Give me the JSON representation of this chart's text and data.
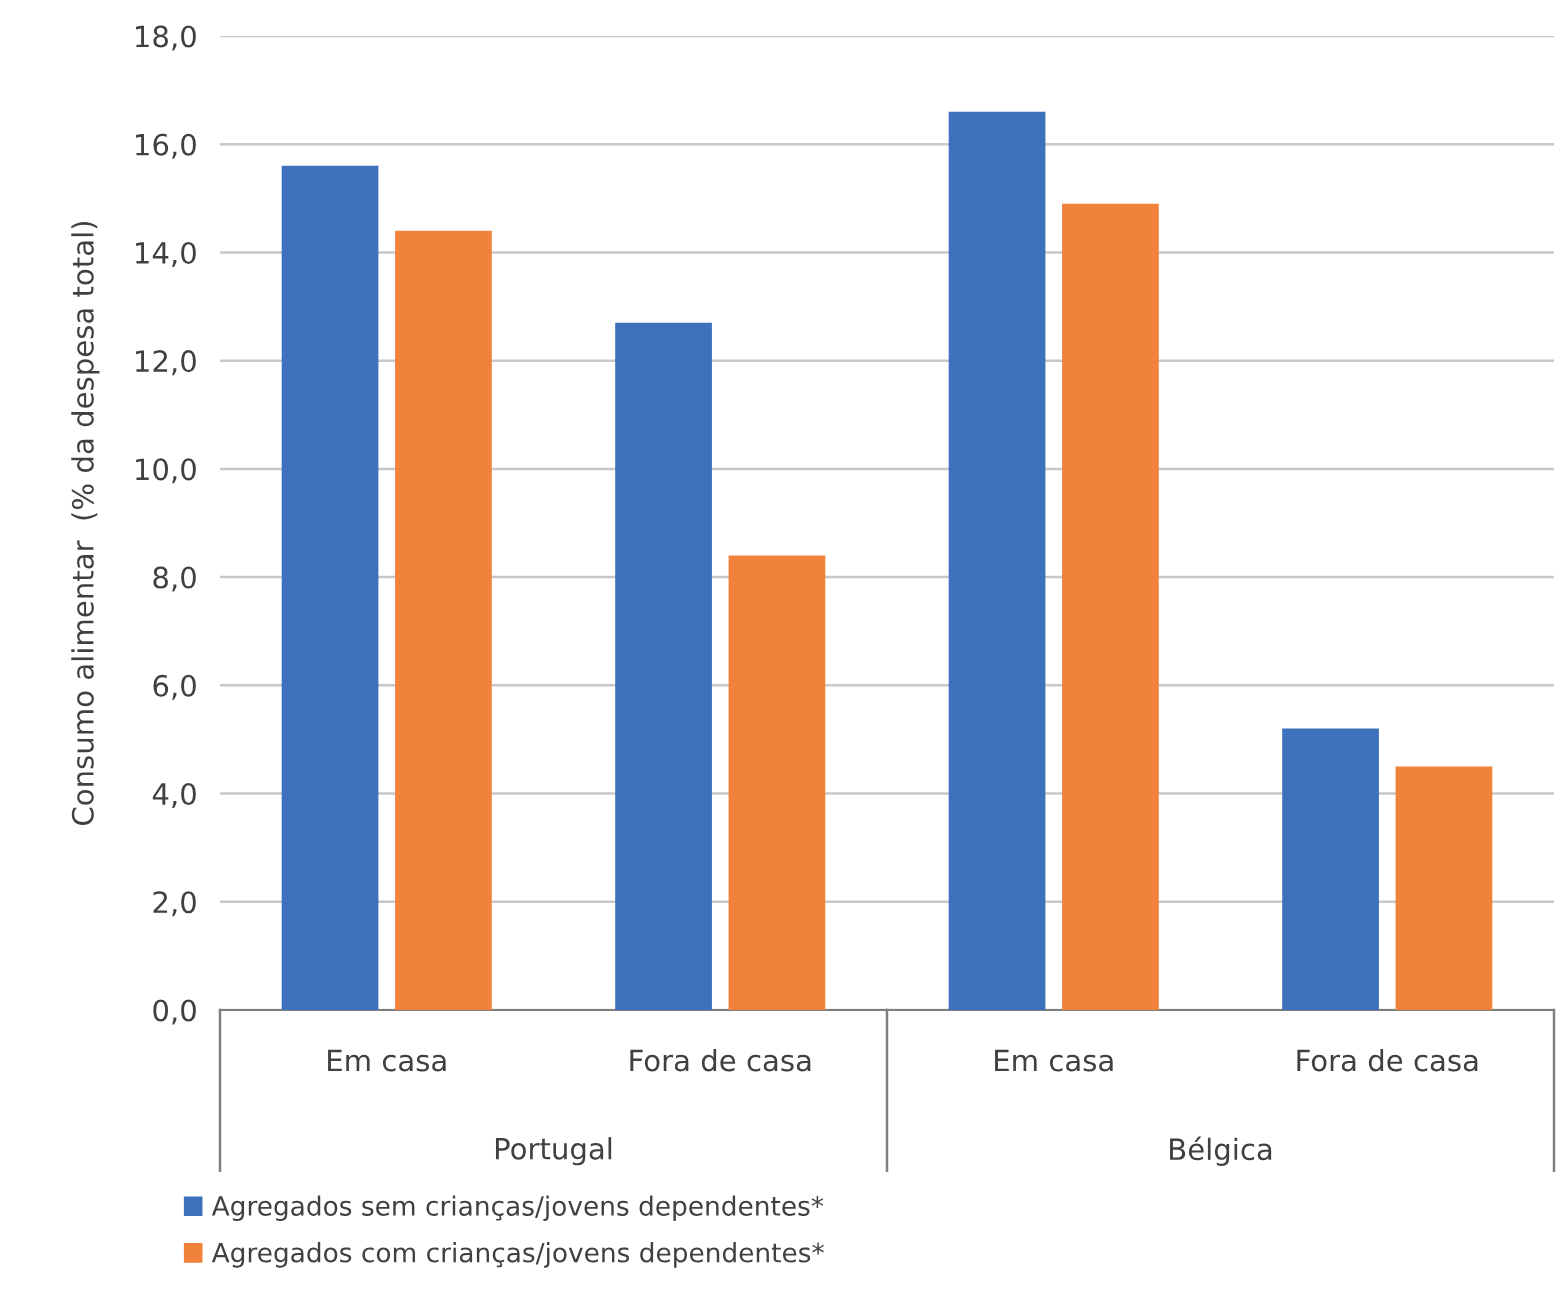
{
  "chart_data": {
    "type": "bar",
    "ylabel": "Consumo alimentar  (% da despesa total)",
    "categories": [
      "Em casa",
      "Fora de casa",
      "Em casa",
      "Fora de casa"
    ],
    "series": [
      {
        "name": "Agregados sem crianças/jovens dependentes*",
        "color": "#3d71bc",
        "values": [
          15.6,
          12.7,
          16.6,
          5.2
        ]
      },
      {
        "name": "Agregados com crianças/jovens dependentes*",
        "color": "#f0823b",
        "values": [
          14.4,
          8.4,
          14.9,
          4.5
        ]
      }
    ],
    "annotations": [
      "Portugal",
      "Bélgica"
    ],
    "ylim": [
      0,
      18
    ],
    "yticks": [
      {
        "value": 0,
        "label": "0,0"
      },
      {
        "value": 2,
        "label": "2,0"
      },
      {
        "value": 4,
        "label": "4,0"
      },
      {
        "value": 6,
        "label": "6,0"
      },
      {
        "value": 8,
        "label": "8,0"
      },
      {
        "value": 10,
        "label": "10,0"
      },
      {
        "value": 12,
        "label": "12,0"
      },
      {
        "value": 14,
        "label": "14,0"
      },
      {
        "value": 16,
        "label": "16,0"
      },
      {
        "value": 18,
        "label": "18,0"
      }
    ],
    "grid": "y",
    "legend": "bottom"
  }
}
